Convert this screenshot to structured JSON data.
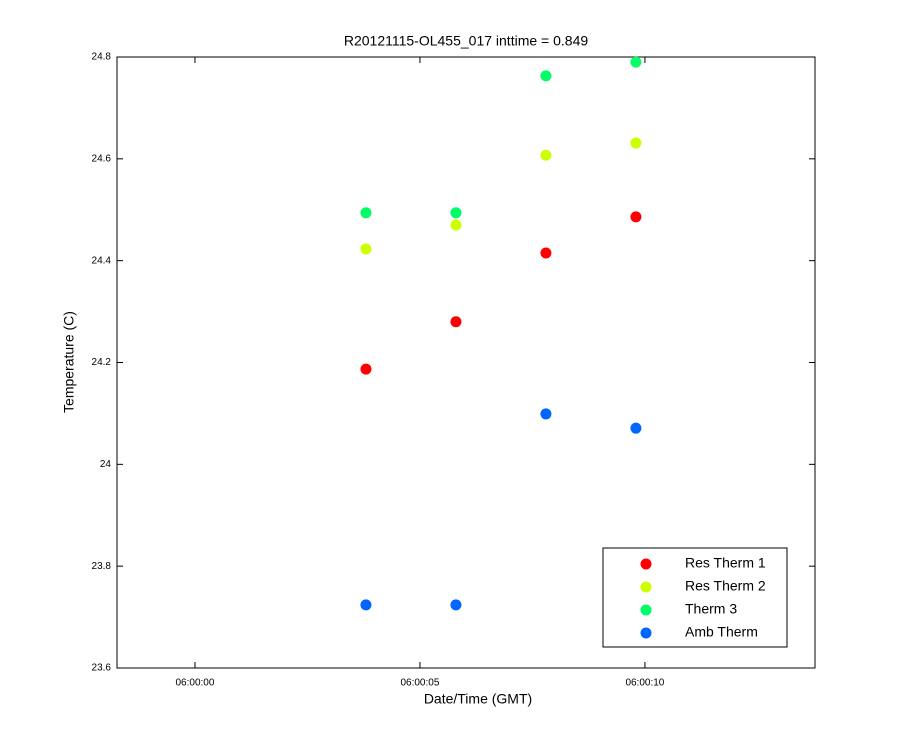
{
  "chart_data": {
    "type": "scatter",
    "title": "R20121115-OL455_017 inttime = 0.849",
    "x_label": "Date/Time (GMT)",
    "y_label": "Temperature (C)",
    "x": [
      3.8,
      5.8,
      7.8,
      9.8
    ],
    "series": [
      {
        "name": "Res Therm 1",
        "color": "#ff0000",
        "values": [
          24.187,
          24.28,
          24.415,
          24.486
        ]
      },
      {
        "name": "Res Therm 2",
        "color": "#ccff00",
        "values": [
          24.423,
          24.47,
          24.607,
          24.631
        ]
      },
      {
        "name": "Therm 3",
        "color": "#00ff66",
        "values": [
          24.494,
          24.494,
          24.763,
          24.79
        ]
      },
      {
        "name": "Amb Therm",
        "color": "#0066ff",
        "values": [
          23.724,
          23.724,
          24.099,
          24.071
        ]
      }
    ],
    "xlim": [
      -1.733,
      13.78
    ],
    "xticks": [
      {
        "value": 0,
        "label": "06:00:00"
      },
      {
        "value": 5,
        "label": "06:00:05"
      },
      {
        "value": 10,
        "label": "06:00:10"
      }
    ],
    "ylim": [
      23.6,
      24.8
    ],
    "yticks": [
      23.6,
      23.8,
      24,
      24.2,
      24.4,
      24.6,
      24.8
    ],
    "grid": false,
    "legend": "lower right"
  }
}
